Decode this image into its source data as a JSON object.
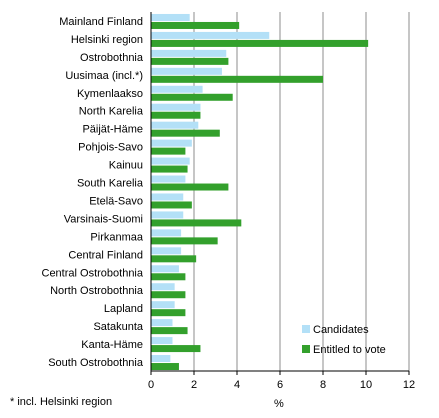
{
  "chart_data": {
    "type": "bar",
    "orientation": "horizontal",
    "categories": [
      "Mainland Finland",
      "Helsinki region",
      "Ostrobothnia",
      "Uusimaa (incl.*)",
      "Kymenlaakso",
      "North Karelia",
      "Päijät-Häme",
      "Pohjois-Savo",
      "Kainuu",
      "South Karelia",
      "Etelä-Savo",
      "Varsinais-Suomi",
      "Pirkanmaa",
      "Central Finland",
      "Central Ostrobothnia",
      "North Ostrobothnia",
      "Lapland",
      "Satakunta",
      "Kanta-Häme",
      "South Ostrobothnia"
    ],
    "series": [
      {
        "name": "Candidates",
        "color": "#b3e0f7",
        "values": [
          1.8,
          5.5,
          3.5,
          3.3,
          2.4,
          2.3,
          2.2,
          1.9,
          1.8,
          1.6,
          1.5,
          1.5,
          1.4,
          1.4,
          1.3,
          1.1,
          1.1,
          1.0,
          1.0,
          0.9
        ]
      },
      {
        "name": "Entitled to vote",
        "color": "#33a02c",
        "values": [
          4.1,
          10.1,
          3.6,
          8.0,
          3.8,
          2.3,
          3.2,
          1.6,
          1.7,
          3.6,
          1.9,
          4.2,
          3.1,
          2.1,
          1.6,
          1.6,
          1.6,
          1.7,
          2.3,
          1.3
        ]
      }
    ],
    "x_ticks": [
      0,
      2,
      4,
      6,
      8,
      10,
      12
    ],
    "xlim": [
      0,
      12
    ],
    "xlabel": "%",
    "ylabel": "",
    "grid": "vertical",
    "legend_position": "bottom-right",
    "footnote": "* incl. Helsinki region"
  }
}
